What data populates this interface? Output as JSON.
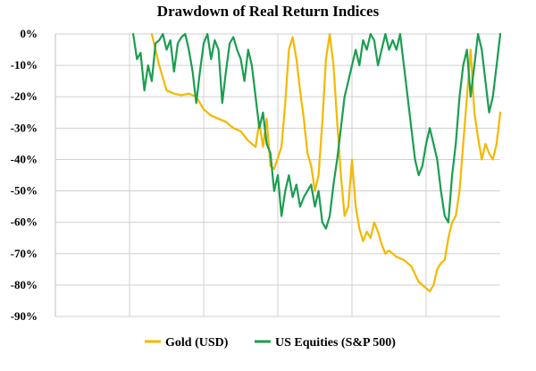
{
  "chart_data": {
    "type": "line",
    "title": "Drawdown of Real Return Indices",
    "xlabel": "",
    "ylabel": "",
    "ylim": [
      -90,
      0
    ],
    "yticks": [
      0,
      -10,
      -20,
      -30,
      -40,
      -50,
      -60,
      -70,
      -80,
      -90
    ],
    "ytick_labels": [
      "0%",
      "-10%",
      "-20%",
      "-30%",
      "-40%",
      "-50%",
      "-60%",
      "-70%",
      "-80%",
      "-90%"
    ],
    "xlim": [
      1900,
      2020
    ],
    "x_gridlines": [
      1920,
      1940,
      1960,
      1980,
      2000
    ],
    "grid": true,
    "legend_position": "bottom",
    "series": [
      {
        "name": "Gold (USD)",
        "color": "#f5b800",
        "points": [
          [
            1926,
            0
          ],
          [
            1928,
            -10
          ],
          [
            1930,
            -18
          ],
          [
            1932,
            -19
          ],
          [
            1934,
            -19.5
          ],
          [
            1936,
            -19
          ],
          [
            1938,
            -20
          ],
          [
            1940,
            -24
          ],
          [
            1942,
            -26
          ],
          [
            1944,
            -27
          ],
          [
            1946,
            -28
          ],
          [
            1948,
            -30
          ],
          [
            1950,
            -31
          ],
          [
            1952,
            -34
          ],
          [
            1954,
            -36
          ],
          [
            1955,
            -28
          ],
          [
            1956,
            -36
          ],
          [
            1957,
            -27
          ],
          [
            1958,
            -42
          ],
          [
            1959,
            -43
          ],
          [
            1961,
            -36
          ],
          [
            1962,
            -22
          ],
          [
            1963,
            -5
          ],
          [
            1964,
            -1
          ],
          [
            1965,
            -8
          ],
          [
            1966,
            -18
          ],
          [
            1967,
            -27
          ],
          [
            1968,
            -38
          ],
          [
            1969,
            -42
          ],
          [
            1970,
            -50
          ],
          [
            1971,
            -45
          ],
          [
            1972,
            -28
          ],
          [
            1973,
            -8
          ],
          [
            1974,
            0
          ],
          [
            1975,
            -10
          ],
          [
            1976,
            -28
          ],
          [
            1977,
            -45
          ],
          [
            1978,
            -58
          ],
          [
            1979,
            -55
          ],
          [
            1980,
            -40
          ],
          [
            1981,
            -55
          ],
          [
            1982,
            -62
          ],
          [
            1983,
            -66
          ],
          [
            1984,
            -63
          ],
          [
            1985,
            -65
          ],
          [
            1986,
            -60
          ],
          [
            1987,
            -63
          ],
          [
            1988,
            -67
          ],
          [
            1989,
            -70
          ],
          [
            1990,
            -69
          ],
          [
            1992,
            -71
          ],
          [
            1994,
            -72
          ],
          [
            1996,
            -74
          ],
          [
            1998,
            -79
          ],
          [
            2000,
            -81
          ],
          [
            2001,
            -82
          ],
          [
            2002,
            -80
          ],
          [
            2003,
            -75
          ],
          [
            2004,
            -73
          ],
          [
            2005,
            -72
          ],
          [
            2006,
            -65
          ],
          [
            2007,
            -60
          ],
          [
            2008,
            -58
          ],
          [
            2009,
            -50
          ],
          [
            2010,
            -35
          ],
          [
            2011,
            -20
          ],
          [
            2012,
            -5
          ],
          [
            2013,
            -25
          ],
          [
            2014,
            -33
          ],
          [
            2015,
            -40
          ],
          [
            2016,
            -35
          ],
          [
            2017,
            -38
          ],
          [
            2018,
            -40
          ],
          [
            2019,
            -35
          ],
          [
            2020,
            -25
          ]
        ]
      },
      {
        "name": "US Equities (S&P 500)",
        "color": "#1a9e50",
        "points": [
          [
            1921,
            0
          ],
          [
            1922,
            -8
          ],
          [
            1923,
            -6
          ],
          [
            1924,
            -18
          ],
          [
            1925,
            -10
          ],
          [
            1926,
            -15
          ],
          [
            1927,
            -3
          ],
          [
            1928,
            -2
          ],
          [
            1929,
            0
          ],
          [
            1930,
            -5
          ],
          [
            1931,
            -2
          ],
          [
            1932,
            -12
          ],
          [
            1933,
            -3
          ],
          [
            1934,
            -1
          ],
          [
            1935,
            0
          ],
          [
            1936,
            -5
          ],
          [
            1937,
            -12
          ],
          [
            1938,
            -22
          ],
          [
            1939,
            -12
          ],
          [
            1940,
            -3
          ],
          [
            1941,
            0
          ],
          [
            1942,
            -8
          ],
          [
            1943,
            -2
          ],
          [
            1944,
            -5
          ],
          [
            1945,
            -22
          ],
          [
            1946,
            -12
          ],
          [
            1947,
            -3
          ],
          [
            1948,
            -1
          ],
          [
            1949,
            -5
          ],
          [
            1950,
            -8
          ],
          [
            1951,
            -15
          ],
          [
            1952,
            -5
          ],
          [
            1953,
            -10
          ],
          [
            1954,
            -20
          ],
          [
            1955,
            -30
          ],
          [
            1956,
            -25
          ],
          [
            1957,
            -35
          ],
          [
            1958,
            -38
          ],
          [
            1959,
            -50
          ],
          [
            1960,
            -45
          ],
          [
            1961,
            -58
          ],
          [
            1962,
            -50
          ],
          [
            1963,
            -45
          ],
          [
            1964,
            -52
          ],
          [
            1965,
            -48
          ],
          [
            1966,
            -55
          ],
          [
            1967,
            -52
          ],
          [
            1968,
            -50
          ],
          [
            1969,
            -48
          ],
          [
            1970,
            -55
          ],
          [
            1971,
            -50
          ],
          [
            1972,
            -60
          ],
          [
            1973,
            -62
          ],
          [
            1974,
            -58
          ],
          [
            1975,
            -48
          ],
          [
            1976,
            -40
          ],
          [
            1977,
            -30
          ],
          [
            1978,
            -20
          ],
          [
            1979,
            -15
          ],
          [
            1980,
            -10
          ],
          [
            1981,
            -5
          ],
          [
            1982,
            -10
          ],
          [
            1983,
            -2
          ],
          [
            1984,
            -5
          ],
          [
            1985,
            0
          ],
          [
            1986,
            -2
          ],
          [
            1987,
            -10
          ],
          [
            1988,
            -5
          ],
          [
            1989,
            0
          ],
          [
            1990,
            -5
          ],
          [
            1991,
            -2
          ],
          [
            1992,
            -5
          ],
          [
            1993,
            0
          ],
          [
            1994,
            -10
          ],
          [
            1995,
            -20
          ],
          [
            1996,
            -30
          ],
          [
            1997,
            -40
          ],
          [
            1998,
            -45
          ],
          [
            1999,
            -42
          ],
          [
            2000,
            -35
          ],
          [
            2001,
            -30
          ],
          [
            2002,
            -35
          ],
          [
            2003,
            -40
          ],
          [
            2004,
            -50
          ],
          [
            2005,
            -58
          ],
          [
            2006,
            -60
          ],
          [
            2007,
            -45
          ],
          [
            2008,
            -35
          ],
          [
            2009,
            -20
          ],
          [
            2010,
            -10
          ],
          [
            2011,
            -5
          ],
          [
            2012,
            -20
          ],
          [
            2013,
            -10
          ],
          [
            2014,
            0
          ],
          [
            2015,
            -5
          ],
          [
            2016,
            -15
          ],
          [
            2017,
            -25
          ],
          [
            2018,
            -20
          ],
          [
            2019,
            -10
          ],
          [
            2020,
            0
          ]
        ]
      }
    ]
  }
}
